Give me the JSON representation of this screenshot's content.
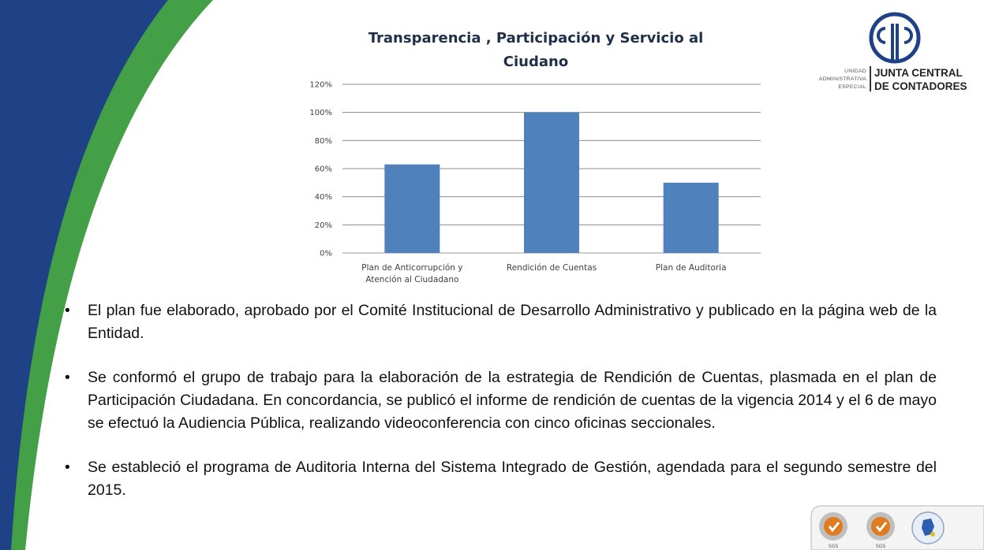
{
  "chart_data": {
    "type": "bar",
    "title": "Transparencia , Participación y Servicio al Ciudano",
    "title_lines": [
      "Transparencia , Participación y Servicio al",
      "Ciudano"
    ],
    "categories": [
      "Plan de Anticorrupción y Atención al Ciudadano",
      "Rendición de Cuentas",
      "Plan de Auditoria"
    ],
    "category_lines": [
      [
        "Plan de Anticorrupción y",
        "Atención al Ciudadano"
      ],
      [
        "Rendición de Cuentas"
      ],
      [
        "Plan de Auditoria"
      ]
    ],
    "values": [
      0.63,
      1.0,
      0.5
    ],
    "ylim": [
      0,
      1.2
    ],
    "yticks": [
      "0%",
      "20%",
      "40%",
      "60%",
      "80%",
      "100%",
      "120%"
    ],
    "grid": true,
    "bar_color": "#4f81bd",
    "xlabel": "",
    "ylabel": ""
  },
  "bullets": [
    "El plan fue elaborado, aprobado por el Comité Institucional de Desarrollo Administrativo y publicado en la página web de la Entidad.",
    "Se conformó el grupo de trabajo para la elaboración de la estrategia de Rendición de Cuentas, plasmada en el plan de Participación Ciudadana. En concordancia, se publicó el informe de rendición de cuentas de la vigencia 2014 y el 6 de mayo se efectuó la Audiencia Pública, realizando videoconferencia con cinco oficinas seccionales.",
    "Se estableció el programa de  Auditoria Interna del Sistema Integrado de Gestión, agendada para el segundo semestre del 2015."
  ],
  "bullet_symbol": "•",
  "logo": {
    "unit_lines": [
      "UNIDAD",
      "ADMINISTRATIVA",
      "ESPECIAL"
    ],
    "name_lines": [
      "JUNTA CENTRAL",
      "DE CONTADORES"
    ],
    "icon": "cjc-monogram-icon"
  },
  "certifications": {
    "label": "SGS",
    "icons": [
      "sgs-certification-icon",
      "sgs-certification-icon",
      "colombia-seal-icon"
    ]
  },
  "colors": {
    "navy": "#1f4286",
    "green": "#43a047",
    "text": "#111111"
  }
}
